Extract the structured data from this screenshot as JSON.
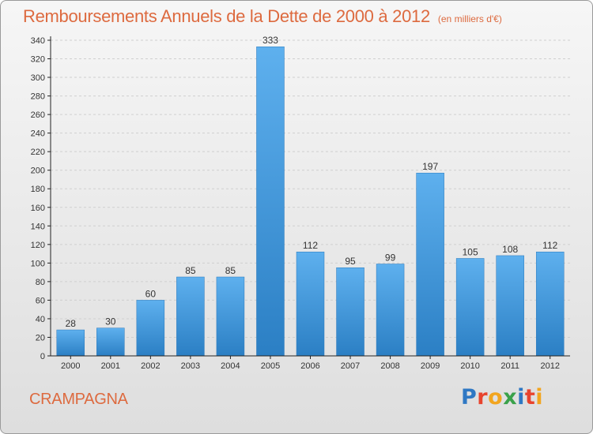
{
  "title": "Remboursements Annuels de la Dette de 2000 à 2012",
  "subtitle": "(en milliers d'€)",
  "commune": "CRAMPAGNA",
  "logo": {
    "letters": [
      {
        "ch": "P",
        "color": "#2f78c4"
      },
      {
        "ch": "r",
        "color": "#e8442e"
      },
      {
        "ch": "o",
        "color": "#f2a51f"
      },
      {
        "ch": "x",
        "color": "#3aa14a"
      },
      {
        "ch": "i",
        "color": "#2f78c4"
      },
      {
        "ch": "t",
        "color": "#e8442e"
      },
      {
        "ch": "i",
        "color": "#f2a51f"
      }
    ]
  },
  "colors": {
    "bar_top": "#5eb0ee",
    "bar_bottom": "#2b7fc4",
    "axis": "#222222",
    "grid": "#cfcfcf",
    "title": "#dd6a3f"
  },
  "chart_data": {
    "type": "bar",
    "title": "Remboursements Annuels de la Dette de 2000 à 2012",
    "subtitle": "(en milliers d'€)",
    "categories": [
      "2000",
      "2001",
      "2002",
      "2003",
      "2004",
      "2005",
      "2006",
      "2007",
      "2008",
      "2009",
      "2010",
      "2011",
      "2012"
    ],
    "values": [
      28,
      30,
      60,
      85,
      85,
      333,
      112,
      95,
      99,
      197,
      105,
      108,
      112
    ],
    "ylim": [
      0,
      340
    ],
    "yticks": [
      0,
      20,
      40,
      60,
      80,
      100,
      120,
      140,
      160,
      180,
      200,
      220,
      240,
      260,
      280,
      300,
      320,
      340
    ],
    "grid": true,
    "data_labels": true
  }
}
